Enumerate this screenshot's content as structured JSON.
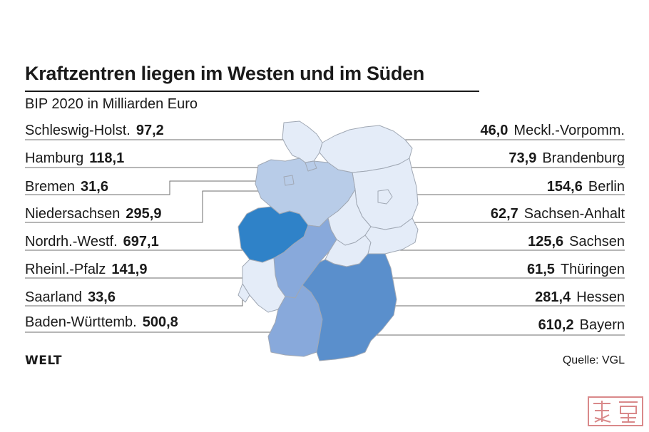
{
  "title": "Kraftzentren liegen im Westen und im Süden",
  "subtitle": "BIP 2020 in Milliarden Euro",
  "colors": {
    "very_light": "#e4ecf8",
    "light": "#b8cce8",
    "medium": "#88a9db",
    "strong": "#5a8fcc",
    "darkest": "#2f82c8",
    "leader_line": "#6e6e6e",
    "border": "#a0a8b4"
  },
  "states_left": [
    {
      "name": "Schleswig-Holst.",
      "value": "97,2"
    },
    {
      "name": "Hamburg",
      "value": "118,1"
    },
    {
      "name": "Bremen",
      "value": "31,6"
    },
    {
      "name": "Niedersachsen",
      "value": "295,9"
    },
    {
      "name": "Nordrh.-Westf.",
      "value": "697,1"
    },
    {
      "name": "Rheinl.-Pfalz",
      "value": "141,9"
    },
    {
      "name": "Saarland",
      "value": "33,6"
    },
    {
      "name": "Baden-Württemb.",
      "value": "500,8"
    }
  ],
  "states_right": [
    {
      "name": "Meckl.-Vorpomm.",
      "value": "46,0"
    },
    {
      "name": "Brandenburg",
      "value": "73,9"
    },
    {
      "name": "Berlin",
      "value": "154,6"
    },
    {
      "name": "Sachsen-Anhalt",
      "value": "62,7"
    },
    {
      "name": "Sachsen",
      "value": "125,6"
    },
    {
      "name": "Thüringen",
      "value": "61,5"
    },
    {
      "name": "Hessen",
      "value": "281,4"
    },
    {
      "name": "Bayern",
      "value": "610,2"
    }
  ],
  "brand": "WELT",
  "source": "Quelle: VGL"
}
